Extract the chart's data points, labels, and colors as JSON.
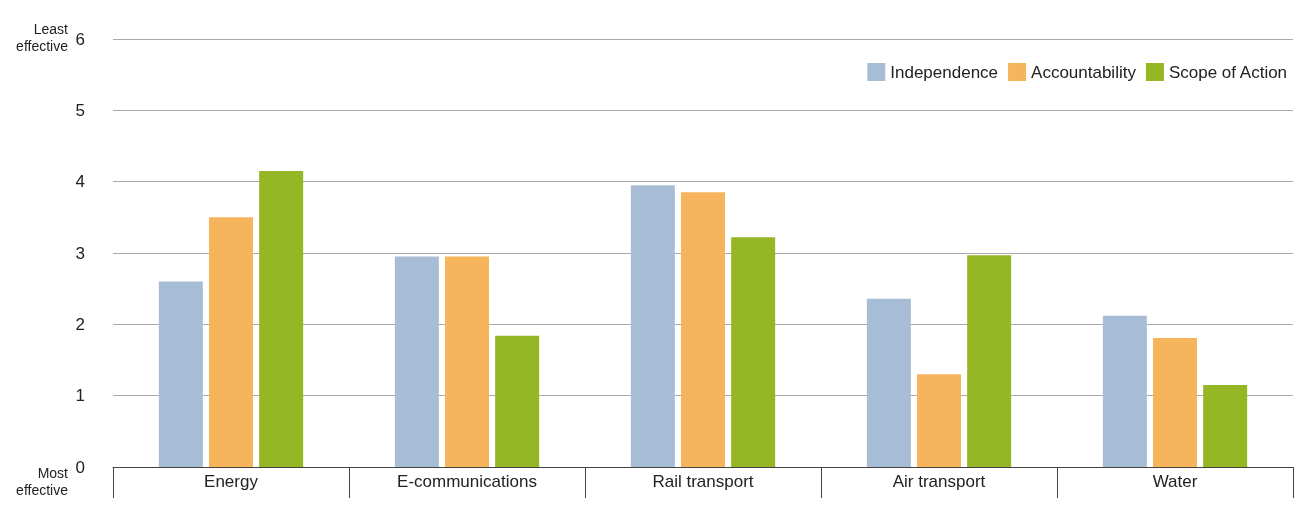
{
  "chart_data": {
    "type": "bar",
    "categories": [
      "Energy",
      "E-communications",
      "Rail transport",
      "Air transport",
      "Water"
    ],
    "series": [
      {
        "name": "Independence",
        "color": "#a7bdd6",
        "values": [
          2.6,
          2.95,
          3.95,
          2.36,
          2.12
        ]
      },
      {
        "name": "Accountability",
        "color": "#f6b45c",
        "values": [
          3.5,
          2.95,
          3.85,
          1.3,
          1.81
        ]
      },
      {
        "name": "Scope of Action",
        "color": "#95b625",
        "values": [
          4.15,
          1.84,
          3.22,
          2.97,
          1.15
        ]
      }
    ],
    "ylim": [
      0,
      6
    ],
    "yticks": [
      0,
      1,
      2,
      3,
      4,
      5,
      6
    ],
    "grid": "y",
    "legend": "top right",
    "annotations": [
      "Least\neffective",
      "Most\neffective"
    ]
  }
}
